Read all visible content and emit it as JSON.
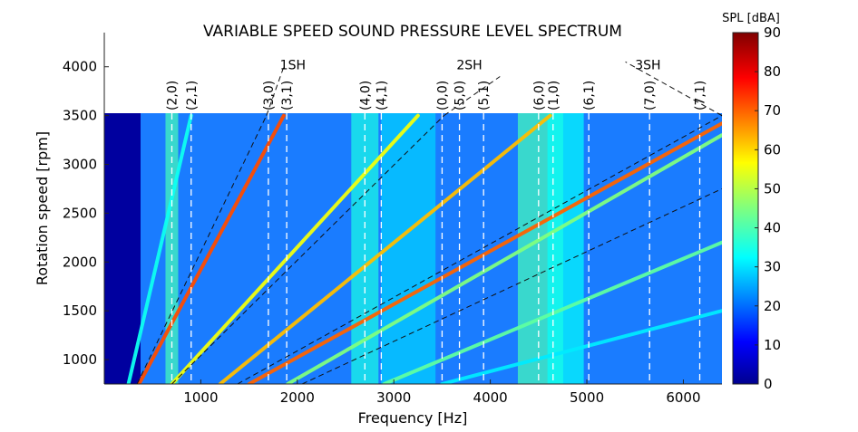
{
  "chart_data": {
    "type": "heatmap",
    "title": "VARIABLE SPEED SOUND PRESSURE LEVEL SPECTRUM",
    "xlabel": "Frequency [Hz]",
    "ylabel": "Rotation speed [rpm]",
    "xlim": [
      0,
      6400
    ],
    "ylim": [
      750,
      4350
    ],
    "data_ylim": [
      750,
      3500
    ],
    "xticks": [
      1000,
      2000,
      3000,
      4000,
      5000,
      6000
    ],
    "xtick_labels": [
      "1000",
      "2000",
      "3000",
      "4000",
      "5000",
      "6000"
    ],
    "yticks": [
      1000,
      1500,
      2000,
      2500,
      3000,
      3500,
      4000
    ],
    "ytick_labels": [
      "1000",
      "1500",
      "2000",
      "2500",
      "3000",
      "3500",
      "4000"
    ],
    "colorbar": {
      "label": "SPL [dBA]",
      "range": [
        0,
        90
      ],
      "ticks": [
        "0",
        "10",
        "20",
        "30",
        "40",
        "50",
        "60",
        "70",
        "80",
        "90"
      ],
      "colormap": "jet"
    },
    "modes": [
      {
        "label": "(2,0)",
        "frequency": 700
      },
      {
        "label": "(2,1)",
        "frequency": 900
      },
      {
        "label": "(3,0)",
        "frequency": 1700
      },
      {
        "label": "(3,1)",
        "frequency": 1890
      },
      {
        "label": "(4,0)",
        "frequency": 2700
      },
      {
        "label": "(4,1)",
        "frequency": 2870
      },
      {
        "label": "(0,0)",
        "frequency": 3500
      },
      {
        "label": "(5,0)",
        "frequency": 3680
      },
      {
        "label": "(5,1)",
        "frequency": 3930
      },
      {
        "label": "(6,0)",
        "frequency": 4500
      },
      {
        "label": "(1,0)",
        "frequency": 4650
      },
      {
        "label": "(6,1)",
        "frequency": 5020
      },
      {
        "label": "(7,0)",
        "frequency": 5650
      },
      {
        "label": "(7,1)",
        "frequency": 6170
      }
    ],
    "harmonic_lines": [
      {
        "label": "1SH",
        "points": [
          [
            340,
            750
          ],
          [
            1680,
            3500
          ]
        ]
      },
      {
        "label": "",
        "points": [
          [
            700,
            750
          ],
          [
            3520,
            3500
          ]
        ]
      },
      {
        "label": "2SH",
        "points": [
          [
            1380,
            750
          ],
          [
            6400,
            3500
          ]
        ]
      },
      {
        "label": "",
        "points": [
          [
            2050,
            750
          ],
          [
            6400,
            2750
          ]
        ]
      },
      {
        "label": "3SH",
        "points": [
          [
            6400,
            3500
          ],
          [
            5400,
            4050
          ]
        ]
      }
    ],
    "harmonic_label_positions": [
      {
        "label": "1SH",
        "x": 1820,
        "y": 4020
      },
      {
        "label": "2SH",
        "x": 3650,
        "y": 4020
      },
      {
        "label": "3SH",
        "x": 5500,
        "y": 4020
      }
    ],
    "order_lines": [
      {
        "points": [
          [
            360,
            750
          ],
          [
            1860,
            3500
          ]
        ],
        "level": 72
      },
      {
        "points": [
          [
            700,
            750
          ],
          [
            3250,
            3500
          ]
        ],
        "level": 55
      },
      {
        "points": [
          [
            1200,
            750
          ],
          [
            4620,
            3500
          ]
        ],
        "level": 62
      },
      {
        "points": [
          [
            1500,
            750
          ],
          [
            6400,
            3420
          ]
        ],
        "level": 70
      },
      {
        "points": [
          [
            1900,
            750
          ],
          [
            6400,
            3300
          ]
        ],
        "level": 45
      },
      {
        "points": [
          [
            2900,
            750
          ],
          [
            6400,
            2200
          ]
        ],
        "level": 42
      },
      {
        "points": [
          [
            3500,
            750
          ],
          [
            6400,
            1500
          ]
        ],
        "level": 32
      },
      {
        "points": [
          [
            250,
            750
          ],
          [
            900,
            3500
          ]
        ],
        "level": 35
      }
    ]
  }
}
